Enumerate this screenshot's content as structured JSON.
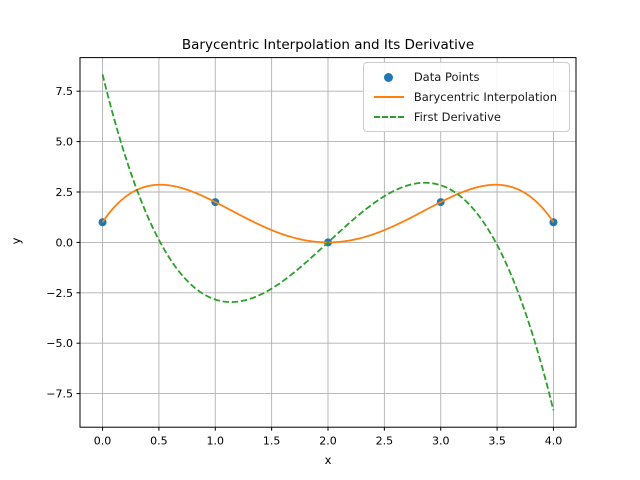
{
  "figure": {
    "background": "#ffffff",
    "text_color": "#000000",
    "spine_color": "#000000"
  },
  "chart_data": {
    "type": "line+scatter",
    "title": "Barycentric Interpolation and Its Derivative",
    "xlabel": "x",
    "ylabel": "y",
    "xlim": [
      -0.2,
      4.2
    ],
    "ylim": [
      -9.1667,
      9.1667
    ],
    "xticks": [
      0.0,
      0.5,
      1.0,
      1.5,
      2.0,
      2.5,
      3.0,
      3.5,
      4.0
    ],
    "xtick_labels": [
      "0.0",
      "0.5",
      "1.0",
      "1.5",
      "2.0",
      "2.5",
      "3.0",
      "3.5",
      "4.0"
    ],
    "yticks": [
      -7.5,
      -5.0,
      -2.5,
      0.0,
      2.5,
      5.0,
      7.5
    ],
    "ytick_labels": [
      "−7.5",
      "−5.0",
      "−2.5",
      "0.0",
      "2.5",
      "5.0",
      "7.5"
    ],
    "grid": true,
    "grid_color": "#b0b0b0",
    "legend_position": "upper right",
    "series": [
      {
        "name": "Data Points",
        "type": "scatter",
        "color": "#1f77b4",
        "x": [
          0,
          1,
          2,
          3,
          4
        ],
        "y": [
          1,
          2,
          0,
          2,
          1
        ]
      },
      {
        "name": "Barycentric Interpolation",
        "type": "line",
        "style": "solid",
        "color": "#ff7f0e",
        "poly_coeffs": [
          1.0,
          8.3333333,
          -11.4166667,
          4.6666667,
          -0.5833333
        ],
        "x": [
          0,
          0.1,
          0.2,
          0.3,
          0.4,
          0.5,
          0.6,
          0.7,
          0.8,
          0.9,
          1.0,
          1.1,
          1.2,
          1.3,
          1.4,
          1.5,
          1.6,
          1.7,
          1.8,
          1.9,
          2.0,
          2.1,
          2.2,
          2.3,
          2.4,
          2.5,
          2.6,
          2.7,
          2.8,
          2.9,
          3.0,
          3.1,
          3.2,
          3.3,
          3.4,
          3.5,
          3.6,
          3.7,
          3.8,
          3.9,
          4.0
        ],
        "y": [
          1.0,
          1.7238,
          2.2464,
          2.5938,
          2.7904,
          2.8594,
          2.8224,
          2.6998,
          2.5104,
          2.2718,
          2.0,
          1.7098,
          1.4144,
          1.1258,
          0.8544,
          0.6094,
          0.3984,
          0.2278,
          0.1024,
          0.0258,
          0.0,
          0.0258,
          0.1024,
          0.2278,
          0.3984,
          0.6094,
          0.8544,
          1.1258,
          1.4144,
          1.7098,
          2.0,
          2.2718,
          2.5104,
          2.6998,
          2.8224,
          2.8594,
          2.7904,
          2.5938,
          2.2464,
          1.7238,
          1.0
        ]
      },
      {
        "name": "First Derivative",
        "type": "line",
        "style": "dashed",
        "color": "#2ca02c",
        "poly_coeffs": [
          8.3333333,
          -22.8333333,
          14.0,
          -2.3333333
        ],
        "x": [
          0,
          0.1,
          0.2,
          0.3,
          0.4,
          0.5,
          0.6,
          0.7,
          0.8,
          0.9,
          1.0,
          1.1,
          1.2,
          1.3,
          1.4,
          1.5,
          1.6,
          1.7,
          1.8,
          1.9,
          2.0,
          2.1,
          2.2,
          2.3,
          2.4,
          2.5,
          2.6,
          2.7,
          2.8,
          2.9,
          3.0,
          3.1,
          3.2,
          3.3,
          3.4,
          3.5,
          3.6,
          3.7,
          3.8,
          3.9,
          4.0
        ],
        "y": [
          8.3333,
          6.1877,
          4.308,
          2.6803,
          1.2907,
          0.125,
          -0.8307,
          -1.5903,
          -2.168,
          -2.5777,
          -2.8333,
          -2.9489,
          -2.9387,
          -2.8163,
          -2.596,
          -2.2917,
          -1.9173,
          -1.487,
          -1.0147,
          -0.5143,
          0.0,
          0.5143,
          1.0147,
          1.487,
          1.9173,
          2.2917,
          2.596,
          2.8163,
          2.9387,
          2.9489,
          2.8333,
          2.5777,
          2.168,
          1.5903,
          0.8307,
          -0.125,
          -1.2907,
          -2.6803,
          -4.308,
          -6.1877,
          -8.3333
        ]
      }
    ]
  }
}
